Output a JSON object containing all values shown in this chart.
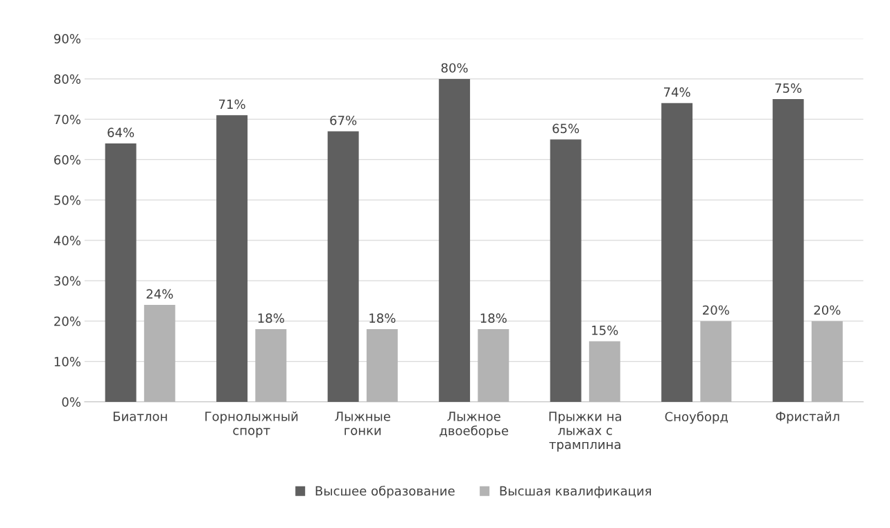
{
  "chart_data": {
    "type": "bar",
    "categories": [
      "Биатлон",
      "Горнолыжный\nспорт",
      "Лыжные\nгонки",
      "Лыжное\nдвоеборье",
      "Прыжки на\nлыжах с\nтрамплина",
      "Сноуборд",
      "Фристайл"
    ],
    "series": [
      {
        "name": "Высшее образование",
        "color": "#5f5f5f",
        "values": [
          64,
          71,
          67,
          80,
          65,
          74,
          75
        ],
        "value_labels": [
          "64%",
          "71%",
          "67%",
          "80%",
          "65%",
          "74%",
          "75%"
        ]
      },
      {
        "name": "Высшая квалификация",
        "color": "#b3b3b3",
        "values": [
          24,
          18,
          18,
          18,
          15,
          20,
          20
        ],
        "value_labels": [
          "24%",
          "18%",
          "18%",
          "18%",
          "15%",
          "20%",
          "20%"
        ]
      }
    ],
    "ylim": [
      0,
      90
    ],
    "yticks": [
      {
        "value": 0,
        "label": "0%"
      },
      {
        "value": 10,
        "label": "10%"
      },
      {
        "value": 20,
        "label": "20%"
      },
      {
        "value": 30,
        "label": "30%"
      },
      {
        "value": 40,
        "label": "40%"
      },
      {
        "value": 50,
        "label": "50%"
      },
      {
        "value": 60,
        "label": "60%"
      },
      {
        "value": 70,
        "label": "70%"
      },
      {
        "value": 80,
        "label": "80%"
      },
      {
        "value": 90,
        "label": "90%"
      }
    ],
    "grid": "y",
    "legend": "bottom"
  }
}
